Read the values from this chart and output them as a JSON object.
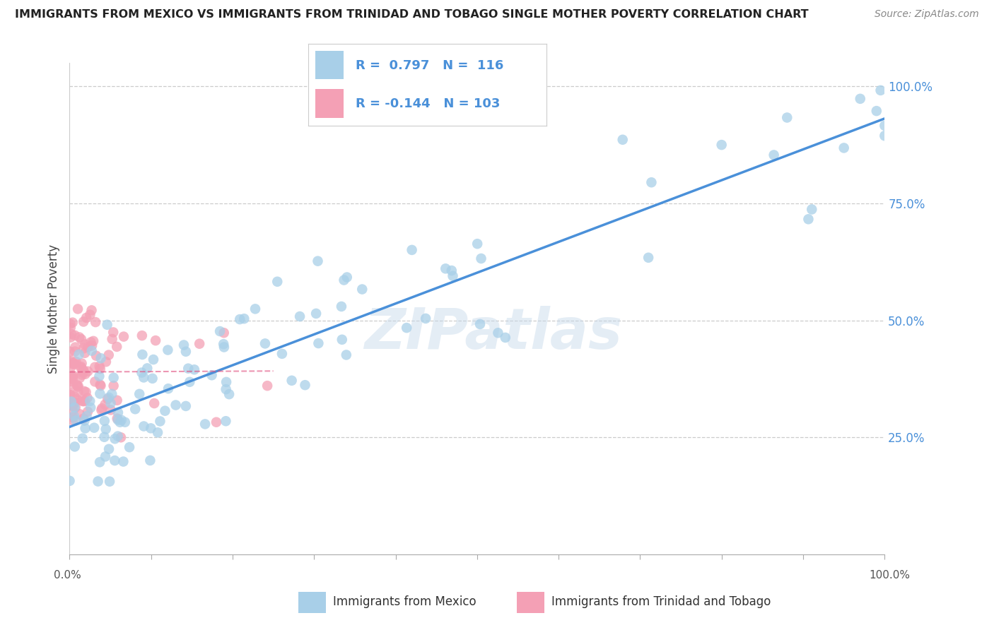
{
  "title": "IMMIGRANTS FROM MEXICO VS IMMIGRANTS FROM TRINIDAD AND TOBAGO SINGLE MOTHER POVERTY CORRELATION CHART",
  "source": "Source: ZipAtlas.com",
  "xlabel_mexico": "Immigrants from Mexico",
  "xlabel_tt": "Immigrants from Trinidad and Tobago",
  "ylabel": "Single Mother Poverty",
  "watermark": "ZIPatlas",
  "mexico": {
    "R": 0.797,
    "N": 116,
    "color": "#a8cfe8",
    "line_color": "#4a90d9"
  },
  "trinidad": {
    "R": -0.144,
    "N": 103,
    "color": "#f4a0b5",
    "line_color": "#e05080"
  },
  "xlim": [
    0.0,
    1.0
  ],
  "ylim": [
    0.0,
    1.05
  ],
  "yticks": [
    0.25,
    0.5,
    0.75,
    1.0
  ],
  "yticklabels": [
    "25.0%",
    "50.0%",
    "75.0%",
    "100.0%"
  ],
  "xtick_positions": [
    0.0,
    0.1,
    0.2,
    0.3,
    0.4,
    0.5,
    0.6,
    0.7,
    0.8,
    0.9,
    1.0
  ],
  "grid_color": "#cccccc",
  "bg_color": "#ffffff",
  "legend_blue_label": "Immigrants from Mexico",
  "legend_pink_label": "Immigrants from Trinidad and Tobago"
}
